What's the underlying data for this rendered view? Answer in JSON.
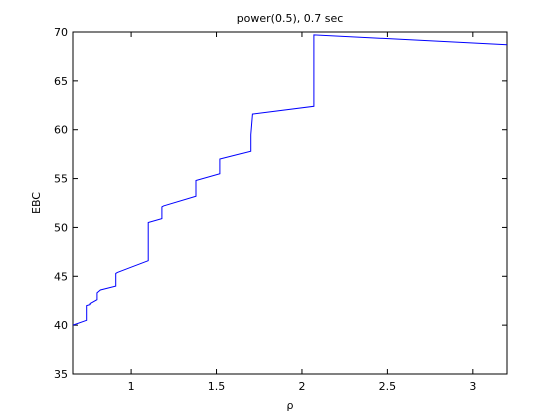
{
  "chart_data": {
    "type": "line",
    "title": "power(0.5), 0.7 sec",
    "xlabel": "ρ",
    "ylabel": "EBC",
    "xlim": [
      0.66,
      3.2
    ],
    "ylim": [
      35,
      70
    ],
    "xticks": [
      1,
      1.5,
      2,
      2.5,
      3
    ],
    "xtick_labels": [
      "1",
      "1.5",
      "2",
      "2.5",
      "3"
    ],
    "yticks": [
      35,
      40,
      45,
      50,
      55,
      60,
      65,
      70
    ],
    "ytick_labels": [
      "35",
      "40",
      "45",
      "50",
      "55",
      "60",
      "65",
      "70"
    ],
    "grid": false,
    "line_color": "#0000ff",
    "series": [
      {
        "x": [
          0.66,
          0.74,
          0.74,
          0.76,
          0.76,
          0.8,
          0.8,
          0.82,
          0.82,
          0.91,
          0.91,
          0.92,
          0.92,
          1.1,
          1.1,
          1.18,
          1.18,
          1.19,
          1.19,
          1.38,
          1.38,
          1.52,
          1.52,
          1.54,
          1.54,
          1.7,
          1.7,
          1.71,
          1.71,
          2.07,
          2.07,
          3.2
        ],
        "y": [
          40.0,
          40.5,
          42.0,
          42.1,
          42.2,
          42.6,
          43.3,
          43.6,
          43.6,
          44.0,
          45.3,
          45.4,
          45.4,
          46.6,
          50.5,
          50.9,
          52.1,
          52.2,
          52.2,
          53.2,
          54.8,
          55.5,
          57.0,
          57.1,
          57.1,
          57.8,
          59.5,
          61.6,
          61.6,
          62.4,
          69.7,
          68.7
        ]
      }
    ]
  }
}
